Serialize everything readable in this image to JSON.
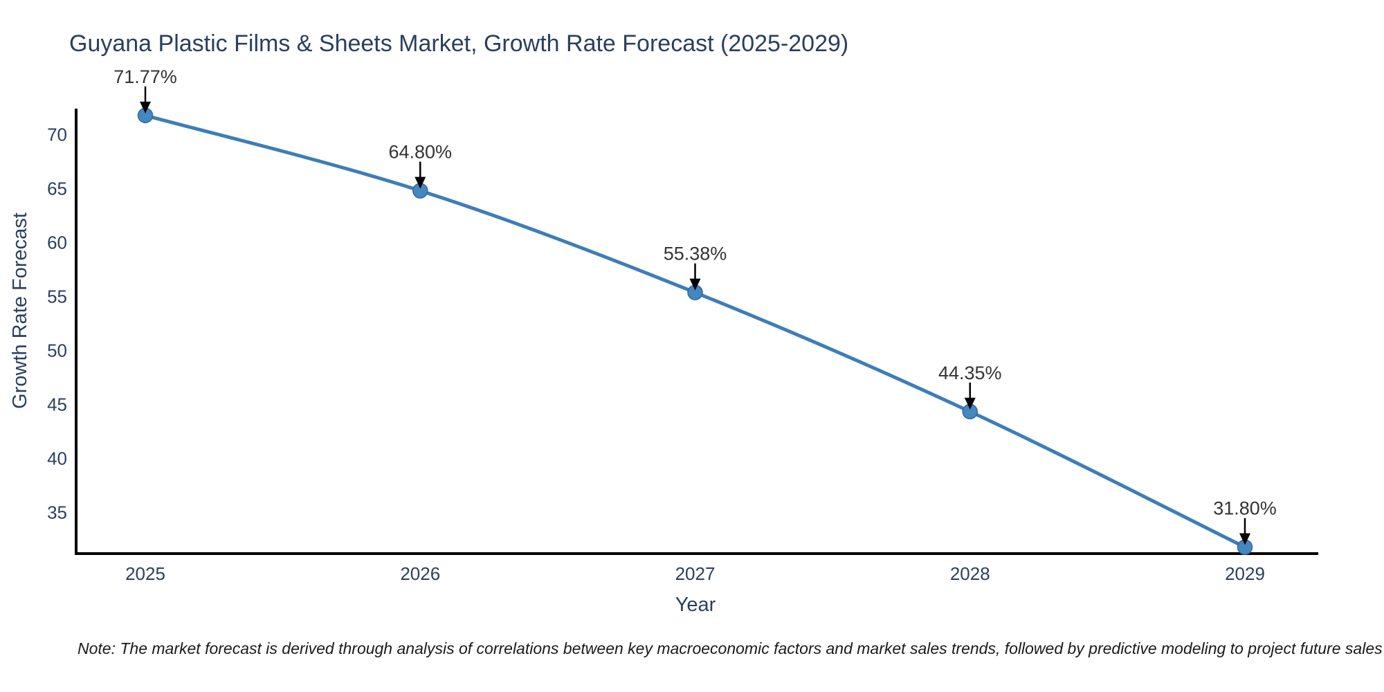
{
  "page": {
    "note": "Note: The market forecast is derived through analysis of correlations between key macroeconomic factors and market sales trends, followed by predictive modeling to project future sales"
  },
  "chart_data": {
    "type": "line",
    "title": "Guyana Plastic Films & Sheets Market, Growth Rate Forecast (2025-2029)",
    "xlabel": "Year",
    "ylabel": "Growth Rate Forecast",
    "categories": [
      "2025",
      "2026",
      "2027",
      "2028",
      "2029"
    ],
    "series": [
      {
        "name": "Growth Rate Forecast",
        "values": [
          71.77,
          64.8,
          55.38,
          44.35,
          31.8
        ]
      }
    ],
    "point_labels": [
      "71.77%",
      "64.80%",
      "55.38%",
      "44.35%",
      "31.80%"
    ],
    "yticks": [
      35,
      40,
      45,
      50,
      55,
      60,
      65,
      70
    ],
    "ylim": [
      31.2,
      72.4
    ],
    "grid": false,
    "legend_position": "none",
    "colors": {
      "line": "#3e7db8",
      "marker_fill": "#4487c1",
      "marker_edge": "#35699c",
      "annotation_text": "#333333",
      "annotation_arrow": "#000000",
      "axis_line": "#000000",
      "tick_text": "#2a3f5f",
      "title_text": "#2a3f5f",
      "note_text": "#1a1a1a",
      "background": "#ffffff"
    }
  }
}
